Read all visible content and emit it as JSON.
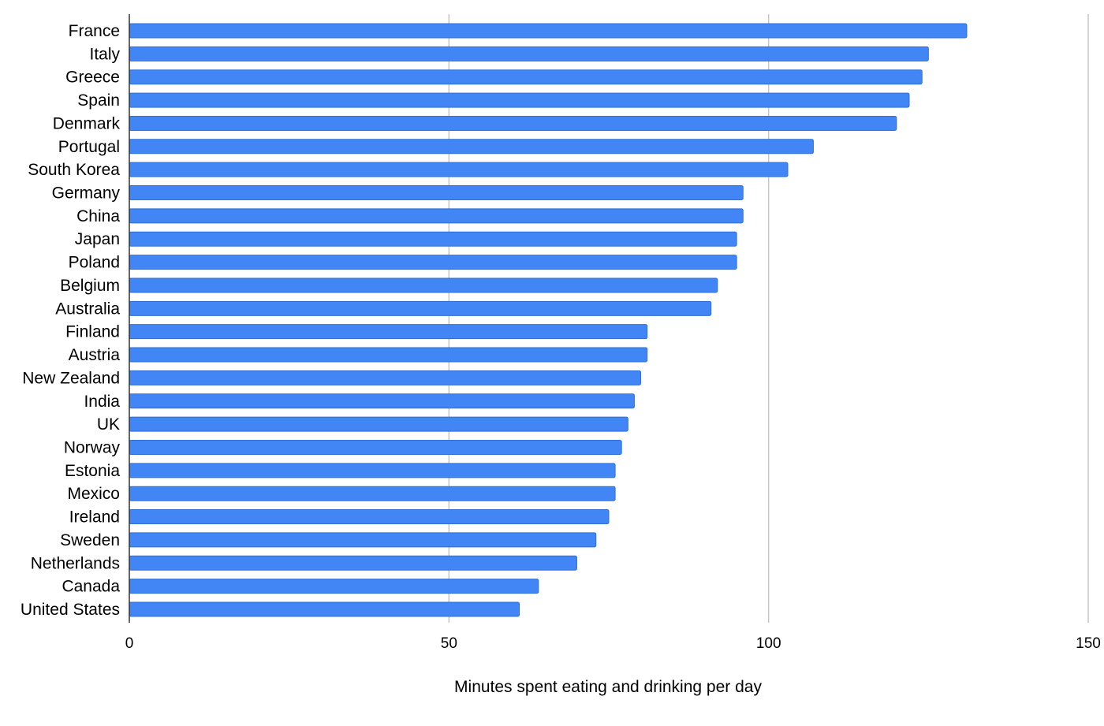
{
  "chart_data": {
    "type": "bar",
    "orientation": "horizontal",
    "categories": [
      "France",
      "Italy",
      "Greece",
      "Spain",
      "Denmark",
      "Portugal",
      "South Korea",
      "Germany",
      "China",
      "Japan",
      "Poland",
      "Belgium",
      "Australia",
      "Finland",
      "Austria",
      "New Zealand",
      "India",
      "UK",
      "Norway",
      "Estonia",
      "Mexico",
      "Ireland",
      "Sweden",
      "Netherlands",
      "Canada",
      "United States"
    ],
    "values": [
      131,
      125,
      124,
      122,
      120,
      107,
      103,
      96,
      96,
      95,
      95,
      92,
      91,
      81,
      81,
      80,
      79,
      78,
      77,
      76,
      76,
      75,
      73,
      70,
      64,
      61
    ],
    "title": "",
    "xlabel": "Minutes spent eating and drinking per day",
    "ylabel": "",
    "xlim": [
      0,
      150
    ],
    "xticks": [
      "0",
      "50",
      "100",
      "150"
    ],
    "grid": true,
    "legend": "none",
    "bar_color": "#4285F4",
    "bar_border_color": "#2f6fd6",
    "grid_color": "#c6c6c6",
    "axis_color": "#333333"
  }
}
